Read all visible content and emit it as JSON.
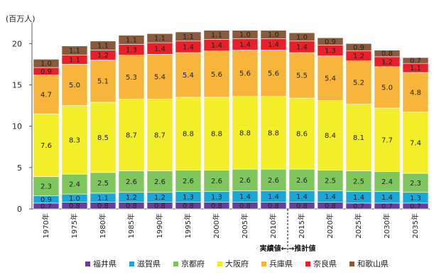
{
  "chart_data": {
    "type": "bar",
    "stacked": true,
    "unit_label": "(百万人)",
    "categories": [
      "1970年",
      "1975年",
      "1980年",
      "1985年",
      "1990年",
      "1995年",
      "2000年",
      "2005年",
      "2010年",
      "2015年",
      "2020年",
      "2025年",
      "2030年",
      "2035年"
    ],
    "ylim": [
      0,
      22
    ],
    "yticks": [
      0,
      5,
      10,
      15,
      20
    ],
    "grid": false,
    "legend_position": "bottom",
    "annotation_left": "実績値←",
    "annotation_right": "→推計値",
    "divider_after_index": 8,
    "series": [
      {
        "name": "福井県",
        "color": "#6a3d9a",
        "values": [
          0.7,
          0.8,
          0.8,
          0.8,
          0.8,
          0.8,
          0.8,
          0.8,
          0.8,
          0.8,
          0.8,
          0.7,
          0.7,
          0.7
        ]
      },
      {
        "name": "滋賀県",
        "color": "#1aa7d8",
        "values": [
          0.9,
          1.0,
          1.1,
          1.2,
          1.2,
          1.3,
          1.3,
          1.4,
          1.4,
          1.4,
          1.4,
          1.4,
          1.4,
          1.3
        ]
      },
      {
        "name": "京都府",
        "color": "#7fc65f",
        "values": [
          2.3,
          2.4,
          2.5,
          2.6,
          2.6,
          2.6,
          2.6,
          2.6,
          2.6,
          2.6,
          2.5,
          2.5,
          2.4,
          2.3
        ]
      },
      {
        "name": "大阪府",
        "color": "#f3ee2a",
        "values": [
          7.6,
          8.3,
          8.5,
          8.7,
          8.7,
          8.8,
          8.8,
          8.8,
          8.8,
          8.6,
          8.4,
          8.1,
          7.7,
          7.4
        ]
      },
      {
        "name": "兵庫県",
        "color": "#f7b53b",
        "values": [
          4.7,
          5.0,
          5.1,
          5.3,
          5.4,
          5.4,
          5.6,
          5.6,
          5.6,
          5.5,
          5.4,
          5.2,
          5.0,
          4.8
        ]
      },
      {
        "name": "奈良県",
        "color": "#e8202a",
        "values": [
          0.9,
          1.1,
          1.2,
          1.3,
          1.4,
          1.4,
          1.4,
          1.4,
          1.4,
          1.4,
          1.3,
          1.2,
          1.2,
          1.1
        ]
      },
      {
        "name": "和歌山県",
        "color": "#8a5a3c",
        "values": [
          1.0,
          1.1,
          1.1,
          1.1,
          1.1,
          1.1,
          1.1,
          1.0,
          1.0,
          1.0,
          0.9,
          0.9,
          0.8,
          0.7
        ]
      }
    ]
  }
}
